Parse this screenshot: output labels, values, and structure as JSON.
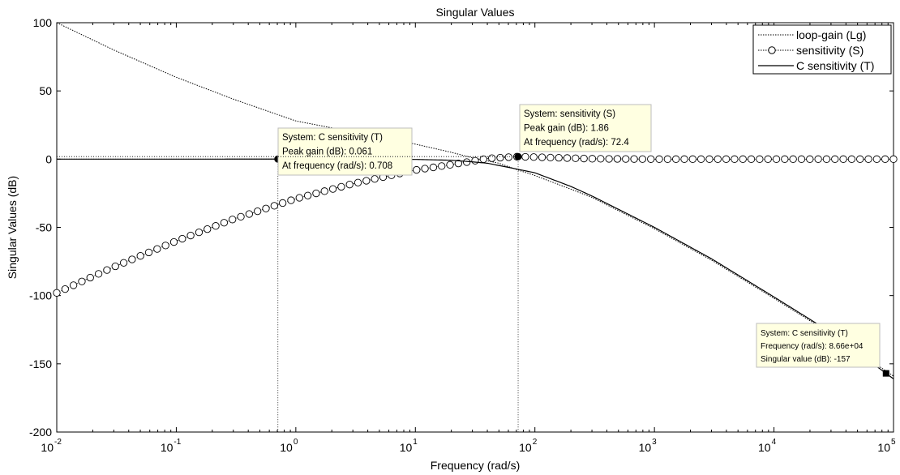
{
  "chart_data": {
    "type": "line",
    "title": "Singular Values",
    "xlabel": "Frequency (rad/s)",
    "ylabel": "Singular Values (dB)",
    "xscale": "log",
    "xlim": [
      0.01,
      100000
    ],
    "ylim": [
      -200,
      100
    ],
    "grid": false,
    "legend_position": "top-right",
    "x_ticks": [
      {
        "value": 0.01,
        "base": "10",
        "exp": "-2"
      },
      {
        "value": 0.1,
        "base": "10",
        "exp": "-1"
      },
      {
        "value": 1,
        "base": "10",
        "exp": "0"
      },
      {
        "value": 10,
        "base": "10",
        "exp": "1"
      },
      {
        "value": 100,
        "base": "10",
        "exp": "2"
      },
      {
        "value": 1000,
        "base": "10",
        "exp": "3"
      },
      {
        "value": 10000,
        "base": "10",
        "exp": "4"
      },
      {
        "value": 100000,
        "base": "10",
        "exp": "5"
      }
    ],
    "y_ticks": [
      100,
      50,
      0,
      -50,
      -100,
      -150,
      -200
    ],
    "series": [
      {
        "name": "loop-gain (Lg)",
        "style": "dotted",
        "color": "#000000",
        "x": [
          0.01,
          0.03,
          0.1,
          0.3,
          1,
          3,
          10,
          20,
          30,
          50,
          72.4,
          100,
          200,
          300,
          1000,
          3000,
          10000,
          30000,
          100000
        ],
        "y": [
          100,
          80,
          60,
          44,
          28,
          20,
          11,
          5,
          1,
          -3,
          -8,
          -12,
          -22,
          -28,
          -51,
          -74,
          -102,
          -128,
          -159
        ]
      },
      {
        "name": "sensitivity (S)",
        "style": "circles",
        "color": "#000000",
        "x": [
          0.01,
          0.03,
          0.1,
          0.3,
          1,
          3,
          10,
          20,
          30,
          40,
          72.4,
          100,
          300,
          1000,
          10000,
          100000
        ],
        "y": [
          -98,
          -79,
          -60,
          -44,
          -29,
          -18,
          -8,
          -4,
          -1.5,
          0.5,
          1.86,
          1.5,
          0.3,
          0,
          0,
          0
        ]
      },
      {
        "name": "C sensitivity (T)",
        "style": "solid",
        "color": "#000000",
        "x": [
          0.01,
          0.1,
          0.708,
          1,
          10,
          20,
          30,
          40,
          60,
          100,
          200,
          300,
          1000,
          3000,
          10000,
          30000,
          86600,
          100000
        ],
        "y": [
          0,
          0,
          0.061,
          0,
          -0.2,
          -0.8,
          -2,
          -3,
          -6,
          -10,
          -20,
          -27,
          -50,
          -73,
          -101,
          -127,
          -157,
          -161
        ]
      }
    ],
    "datatips": [
      {
        "x": 0.708,
        "y": 0.061,
        "marker": "circle",
        "lines": [
          "System: C sensitivity (T)",
          "Peak gain (dB): 0.061",
          "At frequency (rad/s): 0.708"
        ]
      },
      {
        "x": 72.4,
        "y": 1.86,
        "marker": "circle",
        "lines": [
          "System: sensitivity (S)",
          "Peak gain (dB): 1.86",
          "At frequency (rad/s): 72.4"
        ]
      },
      {
        "x": 86600,
        "y": -157,
        "marker": "square",
        "lines": [
          "System: C sensitivity (T)",
          "Frequency (rad/s): 8.66e+04",
          "Singular value (dB): -157"
        ]
      }
    ]
  }
}
